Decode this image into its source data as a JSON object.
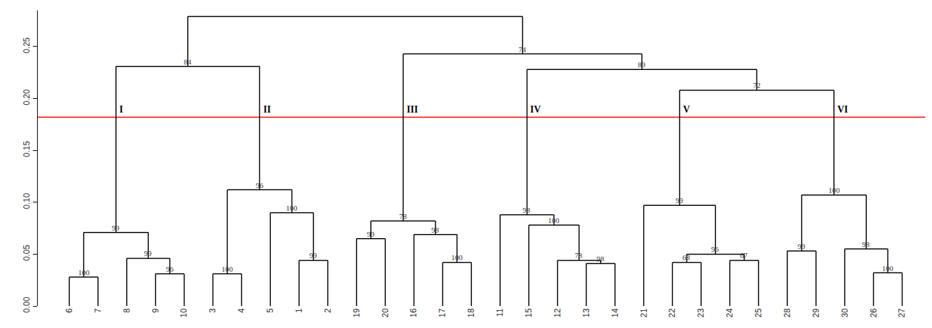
{
  "chart_data": {
    "type": "dendrogram",
    "color": "#000000",
    "ylim": [
      0,
      0.285
    ],
    "yticks": [
      {
        "value": 0,
        "label": "0.00"
      },
      0.05,
      {
        "value": 0.1,
        "label": "0.10"
      },
      0.15,
      {
        "value": 0.2,
        "label": "0.20"
      },
      0.25
    ],
    "threshold": {
      "value": 0.182,
      "color": "#ff0000"
    },
    "tree": {
      "height": 0.279,
      "children": [
        {
          "height": 0.231,
          "support": 84,
          "children": [
            {
              "height": 0.071,
              "support": 99,
              "cluster": "I",
              "children": [
                {
                  "height": 0.028,
                  "support": 100,
                  "children": [
                    "6",
                    "7"
                  ]
                },
                {
                  "height": 0.046,
                  "support": 99,
                  "children": [
                    "8",
                    {
                      "height": 0.031,
                      "support": 96,
                      "children": [
                        "9",
                        "10"
                      ]
                    }
                  ]
                }
              ]
            },
            {
              "height": 0.112,
              "support": 96,
              "cluster": "II",
              "children": [
                {
                  "height": 0.031,
                  "support": 100,
                  "children": [
                    "3",
                    "4"
                  ]
                },
                {
                  "height": 0.09,
                  "support": 100,
                  "children": [
                    "5",
                    {
                      "height": 0.044,
                      "support": 99,
                      "children": [
                        "1",
                        "2"
                      ]
                    }
                  ]
                }
              ]
            }
          ]
        },
        {
          "height": 0.243,
          "support": 74,
          "children": [
            {
              "height": 0.082,
              "support": 78,
              "cluster": "III",
              "children": [
                {
                  "height": 0.065,
                  "support": 99,
                  "children": [
                    "19",
                    "20"
                  ]
                },
                {
                  "height": 0.069,
                  "support": 98,
                  "children": [
                    "16",
                    {
                      "height": 0.042,
                      "support": 100,
                      "children": [
                        "17",
                        "18"
                      ]
                    }
                  ]
                }
              ]
            },
            {
              "height": 0.228,
              "support": 89,
              "children": [
                {
                  "height": 0.088,
                  "support": 98,
                  "cluster": "IV",
                  "children": [
                    "11",
                    {
                      "height": 0.078,
                      "support": 100,
                      "children": [
                        "15",
                        {
                          "height": 0.044,
                          "support": 78,
                          "children": [
                            "12",
                            {
                              "height": 0.041,
                              "support": 98,
                              "children": [
                                "13",
                                "14"
                              ]
                            }
                          ]
                        }
                      ]
                    }
                  ]
                },
                {
                  "height": 0.208,
                  "support": 72,
                  "children": [
                    {
                      "height": 0.097,
                      "support": 99,
                      "cluster": "V",
                      "children": [
                        "21",
                        {
                          "height": 0.05,
                          "support": 96,
                          "children": [
                            {
                              "height": 0.042,
                              "support": 68,
                              "children": [
                                "22",
                                "23"
                              ]
                            },
                            {
                              "height": 0.044,
                              "support": 67,
                              "children": [
                                "24",
                                "25"
                              ]
                            }
                          ]
                        }
                      ]
                    },
                    {
                      "height": 0.107,
                      "support": 100,
                      "cluster": "VI",
                      "children": [
                        {
                          "height": 0.053,
                          "support": 99,
                          "children": [
                            "28",
                            "29"
                          ]
                        },
                        {
                          "height": 0.055,
                          "support": 98,
                          "children": [
                            "30",
                            {
                              "height": 0.032,
                              "support": 100,
                              "children": [
                                "26",
                                "27"
                              ]
                            }
                          ]
                        }
                      ]
                    }
                  ]
                }
              ]
            }
          ]
        }
      ]
    }
  }
}
